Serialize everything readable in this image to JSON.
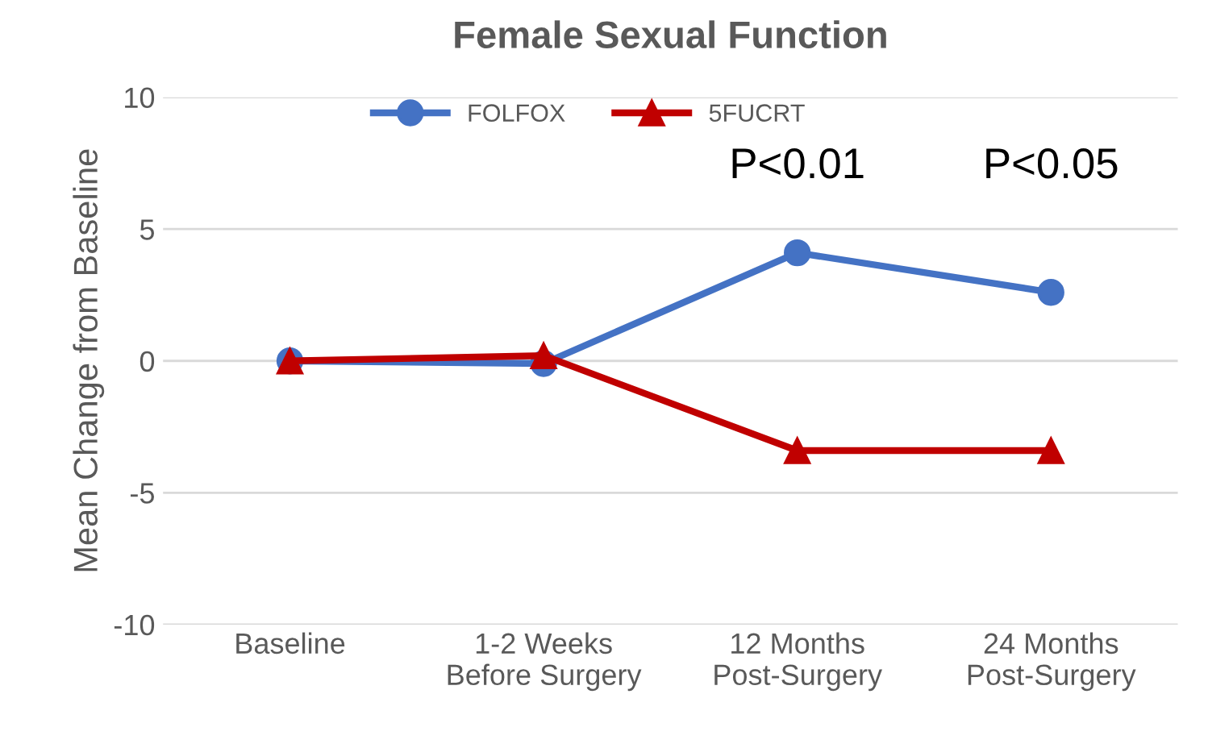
{
  "chart_data": {
    "type": "line",
    "title": "Female Sexual Function",
    "ylabel": "Mean Change from Baseline",
    "categories": [
      "Baseline",
      "1-2 Weeks\nBefore Surgery",
      "12 Months\nPost-Surgery",
      "24 Months\nPost-Surgery"
    ],
    "series": [
      {
        "name": "FOLFOX",
        "color": "#4472c4",
        "marker": "circle",
        "values": [
          0,
          -0.1,
          4.1,
          2.6
        ]
      },
      {
        "name": "5FUCRT",
        "color": "#c00000",
        "marker": "triangle",
        "values": [
          0,
          0.2,
          -3.4,
          -3.4
        ]
      }
    ],
    "ylim": [
      -10,
      10
    ],
    "yticks": [
      -10,
      -5,
      0,
      5,
      10
    ],
    "grid": "y",
    "legend": "top",
    "annotations": [
      "P<0.01",
      "P<0.05"
    ]
  }
}
